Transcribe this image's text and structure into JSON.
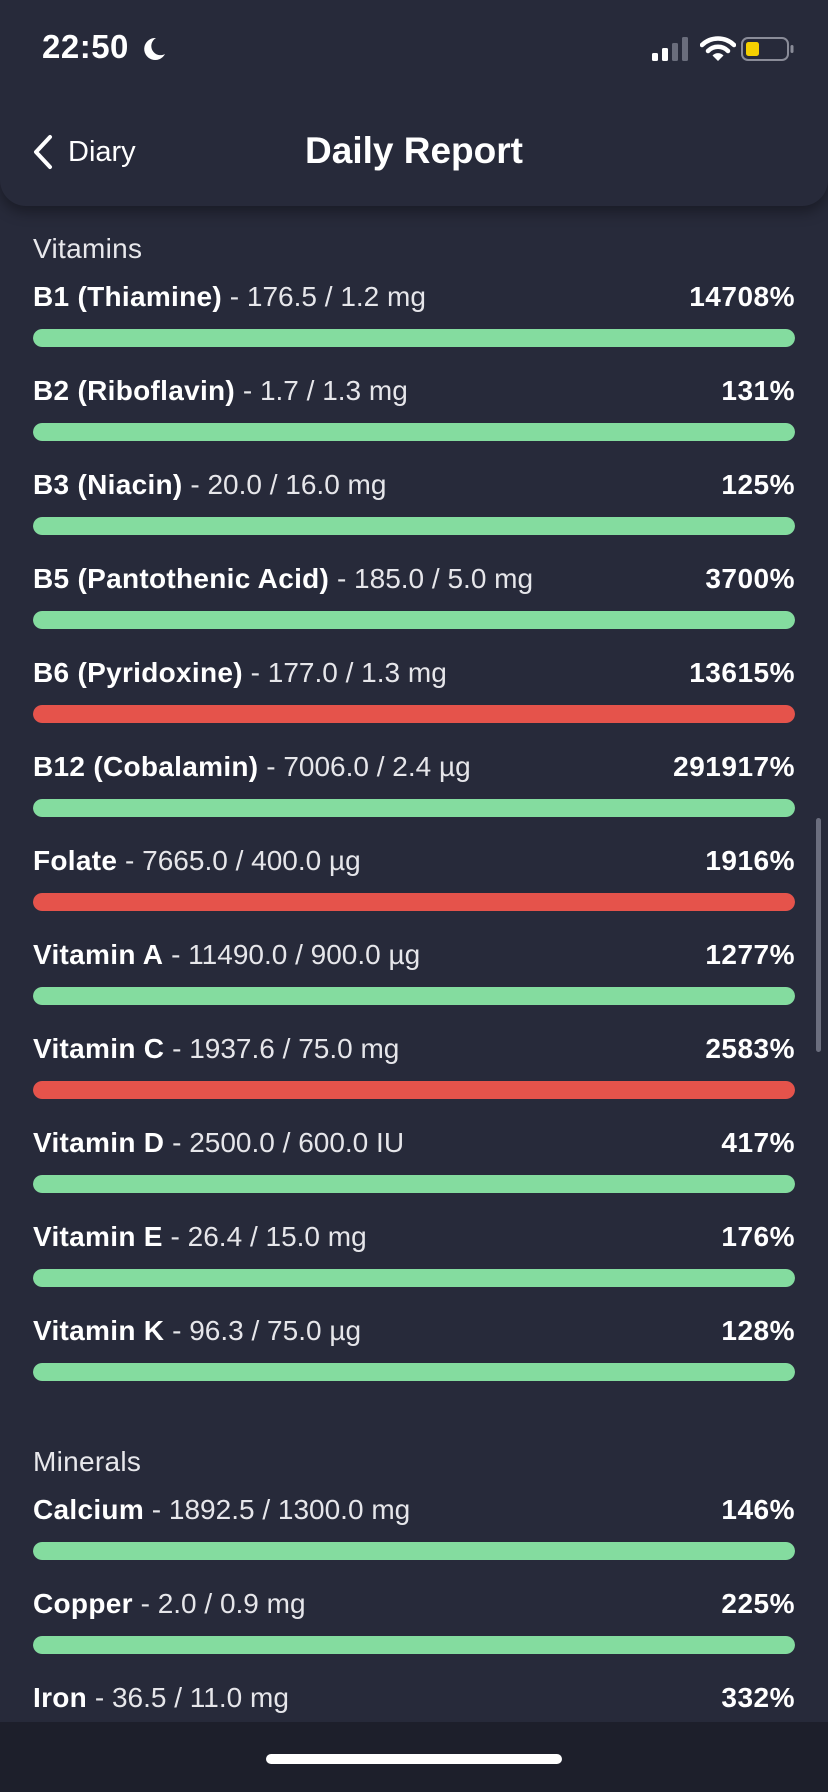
{
  "status_bar": {
    "time": "22:50"
  },
  "header": {
    "back_label": "Diary",
    "title": "Daily Report"
  },
  "colors": {
    "good": "#84dc9f",
    "bad": "#e5534b",
    "background": "#272a3a"
  },
  "sections": [
    {
      "title": "Vitamins",
      "items": [
        {
          "name": "B1 (Thiamine)",
          "detail": " - 176.5 / 1.2 mg",
          "percent": "14708%",
          "status": "good"
        },
        {
          "name": "B2 (Riboflavin)",
          "detail": " - 1.7 / 1.3 mg",
          "percent": "131%",
          "status": "good"
        },
        {
          "name": "B3 (Niacin)",
          "detail": " - 20.0 / 16.0 mg",
          "percent": "125%",
          "status": "good"
        },
        {
          "name": "B5 (Pantothenic Acid)",
          "detail": " - 185.0 / 5.0 mg",
          "percent": "3700%",
          "status": "good"
        },
        {
          "name": "B6 (Pyridoxine)",
          "detail": " - 177.0 / 1.3 mg",
          "percent": "13615%",
          "status": "bad"
        },
        {
          "name": "B12 (Cobalamin)",
          "detail": " - 7006.0 / 2.4 µg",
          "percent": "291917%",
          "status": "good"
        },
        {
          "name": "Folate",
          "detail": " - 7665.0 / 400.0 µg",
          "percent": "1916%",
          "status": "bad"
        },
        {
          "name": "Vitamin A",
          "detail": " - 11490.0 / 900.0 µg",
          "percent": "1277%",
          "status": "good"
        },
        {
          "name": "Vitamin C",
          "detail": " - 1937.6 / 75.0 mg",
          "percent": "2583%",
          "status": "bad"
        },
        {
          "name": "Vitamin D",
          "detail": " - 2500.0 / 600.0 IU",
          "percent": "417%",
          "status": "good"
        },
        {
          "name": "Vitamin E",
          "detail": " - 26.4 / 15.0 mg",
          "percent": "176%",
          "status": "good"
        },
        {
          "name": "Vitamin K",
          "detail": " - 96.3 / 75.0 µg",
          "percent": "128%",
          "status": "good"
        }
      ]
    },
    {
      "title": "Minerals",
      "items": [
        {
          "name": "Calcium",
          "detail": " - 1892.5 / 1300.0 mg",
          "percent": "146%",
          "status": "good"
        },
        {
          "name": "Copper",
          "detail": " - 2.0 / 0.9 mg",
          "percent": "225%",
          "status": "good"
        },
        {
          "name": "Iron",
          "detail": " - 36.5 / 11.0 mg",
          "percent": "332%",
          "status": "good"
        }
      ]
    }
  ]
}
